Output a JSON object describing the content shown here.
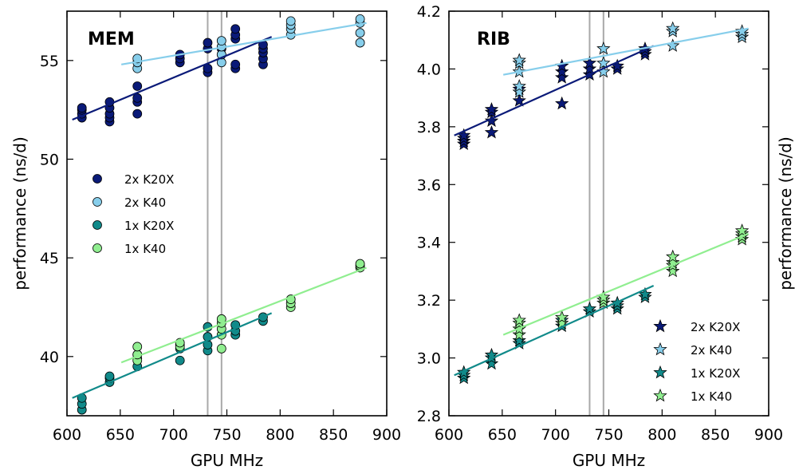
{
  "x_axis_label": "GPU MHz",
  "y_axis_label": "performance (ns/d)",
  "vertical_reference_lines_mhz": [
    732,
    745
  ],
  "series_colors": {
    "2x K20X": "#0a1a78",
    "2x K40": "#87ceeb",
    "1x K20X": "#118a8a",
    "1x K40": "#90ee90"
  },
  "chart_data": [
    {
      "type": "scatter",
      "title": "MEM",
      "marker": "circle",
      "xlabel": "GPU MHz",
      "ylabel": "performance (ns/d)",
      "xlim": [
        600,
        900
      ],
      "ylim": [
        37,
        57.5
      ],
      "xticks": [
        600,
        650,
        700,
        750,
        800,
        850,
        900
      ],
      "yticks": [
        40,
        45,
        50,
        55
      ],
      "grid": false,
      "legend": "center-left",
      "series": [
        {
          "name": "2x K20X",
          "points": [
            [
              614,
              52.1
            ],
            [
              614,
              52.3
            ],
            [
              614,
              52.5
            ],
            [
              614,
              52.6
            ],
            [
              640,
              51.9
            ],
            [
              640,
              52.1
            ],
            [
              640,
              52.3
            ],
            [
              640,
              52.6
            ],
            [
              640,
              52.9
            ],
            [
              666,
              52.3
            ],
            [
              666,
              52.9
            ],
            [
              666,
              53.1
            ],
            [
              666,
              53.7
            ],
            [
              706,
              54.9
            ],
            [
              706,
              55.1
            ],
            [
              706,
              55.3
            ],
            [
              732,
              54.4
            ],
            [
              732,
              54.6
            ],
            [
              732,
              55.6
            ],
            [
              732,
              55.9
            ],
            [
              745,
              55.3
            ],
            [
              745,
              55.6
            ],
            [
              758,
              54.6
            ],
            [
              758,
              54.8
            ],
            [
              758,
              56.1
            ],
            [
              758,
              56.3
            ],
            [
              758,
              56.6
            ],
            [
              784,
              54.8
            ],
            [
              784,
              55.1
            ],
            [
              784,
              55.4
            ],
            [
              784,
              55.6
            ],
            [
              784,
              55.8
            ]
          ],
          "fit": [
            [
              605,
              52.0
            ],
            [
              792,
              56.2
            ]
          ]
        },
        {
          "name": "2x K40",
          "points": [
            [
              666,
              54.6
            ],
            [
              666,
              54.9
            ],
            [
              666,
              55.1
            ],
            [
              745,
              54.9
            ],
            [
              745,
              55.3
            ],
            [
              745,
              55.7
            ],
            [
              745,
              56.0
            ],
            [
              810,
              56.3
            ],
            [
              810,
              56.6
            ],
            [
              810,
              56.8
            ],
            [
              810,
              57.0
            ],
            [
              875,
              55.9
            ],
            [
              875,
              56.4
            ],
            [
              875,
              56.9
            ],
            [
              875,
              57.1
            ]
          ],
          "fit": [
            [
              651,
              54.8
            ],
            [
              881,
              56.9
            ]
          ]
        },
        {
          "name": "1x K20X",
          "points": [
            [
              614,
              37.3
            ],
            [
              614,
              37.6
            ],
            [
              614,
              37.9
            ],
            [
              640,
              38.7
            ],
            [
              640,
              38.9
            ],
            [
              640,
              39.0
            ],
            [
              666,
              39.5
            ],
            [
              666,
              39.9
            ],
            [
              666,
              40.1
            ],
            [
              706,
              39.8
            ],
            [
              706,
              40.4
            ],
            [
              706,
              40.6
            ],
            [
              732,
              40.3
            ],
            [
              732,
              40.6
            ],
            [
              732,
              41.0
            ],
            [
              732,
              41.5
            ],
            [
              758,
              41.1
            ],
            [
              758,
              41.3
            ],
            [
              758,
              41.6
            ],
            [
              784,
              41.8
            ],
            [
              784,
              42.0
            ]
          ],
          "fit": [
            [
              605,
              37.9
            ],
            [
              792,
              42.2
            ]
          ]
        },
        {
          "name": "1x K40",
          "points": [
            [
              666,
              39.8
            ],
            [
              666,
              40.1
            ],
            [
              666,
              40.5
            ],
            [
              706,
              40.5
            ],
            [
              706,
              40.7
            ],
            [
              745,
              40.4
            ],
            [
              745,
              41.1
            ],
            [
              745,
              41.4
            ],
            [
              745,
              41.7
            ],
            [
              745,
              41.9
            ],
            [
              810,
              42.5
            ],
            [
              810,
              42.7
            ],
            [
              810,
              42.9
            ],
            [
              875,
              44.5
            ],
            [
              875,
              44.6
            ],
            [
              875,
              44.7
            ]
          ],
          "fit": [
            [
              651,
              39.7
            ],
            [
              881,
              44.5
            ]
          ]
        }
      ]
    },
    {
      "type": "scatter",
      "title": "RIB",
      "marker": "star",
      "xlabel": "GPU MHz",
      "ylabel": "performance (ns/d)",
      "xlim": [
        600,
        900
      ],
      "ylim": [
        2.8,
        4.2
      ],
      "xticks": [
        600,
        650,
        700,
        750,
        800,
        850,
        900
      ],
      "yticks": [
        2.8,
        3.0,
        3.2,
        3.4,
        3.6,
        3.8,
        4.0,
        4.2
      ],
      "grid": false,
      "legend": "lower-right",
      "series": [
        {
          "name": "2x K20X",
          "points": [
            [
              614,
              3.74
            ],
            [
              614,
              3.75
            ],
            [
              614,
              3.76
            ],
            [
              614,
              3.77
            ],
            [
              640,
              3.78
            ],
            [
              640,
              3.82
            ],
            [
              640,
              3.85
            ],
            [
              640,
              3.86
            ],
            [
              666,
              3.89
            ],
            [
              666,
              3.93
            ],
            [
              706,
              3.88
            ],
            [
              706,
              3.97
            ],
            [
              706,
              3.99
            ],
            [
              706,
              4.01
            ],
            [
              732,
              3.98
            ],
            [
              732,
              4.0
            ],
            [
              732,
              4.02
            ],
            [
              758,
              4.0
            ],
            [
              758,
              4.01
            ],
            [
              784,
              4.05
            ],
            [
              784,
              4.06
            ],
            [
              784,
              4.07
            ]
          ],
          "fit": [
            [
              605,
              3.77
            ],
            [
              792,
              4.08
            ]
          ]
        },
        {
          "name": "2x K40",
          "points": [
            [
              666,
              3.92
            ],
            [
              666,
              3.94
            ],
            [
              666,
              3.99
            ],
            [
              666,
              4.02
            ],
            [
              666,
              4.03
            ],
            [
              745,
              3.99
            ],
            [
              745,
              4.02
            ],
            [
              745,
              4.07
            ],
            [
              810,
              4.08
            ],
            [
              810,
              4.13
            ],
            [
              810,
              4.14
            ],
            [
              875,
              4.11
            ],
            [
              875,
              4.12
            ],
            [
              875,
              4.13
            ]
          ],
          "fit": [
            [
              651,
              3.98
            ],
            [
              881,
              4.14
            ]
          ]
        },
        {
          "name": "1x K20X",
          "points": [
            [
              614,
              2.93
            ],
            [
              614,
              2.94
            ],
            [
              614,
              2.95
            ],
            [
              640,
              2.98
            ],
            [
              640,
              3.0
            ],
            [
              640,
              3.01
            ],
            [
              666,
              3.05
            ],
            [
              666,
              3.06
            ],
            [
              706,
              3.11
            ],
            [
              706,
              3.13
            ],
            [
              732,
              3.16
            ],
            [
              732,
              3.17
            ],
            [
              758,
              3.17
            ],
            [
              758,
              3.18
            ],
            [
              758,
              3.19
            ],
            [
              784,
              3.21
            ],
            [
              784,
              3.22
            ]
          ],
          "fit": [
            [
              605,
              2.94
            ],
            [
              792,
              3.25
            ]
          ]
        },
        {
          "name": "1x K40",
          "points": [
            [
              666,
              3.08
            ],
            [
              666,
              3.1
            ],
            [
              666,
              3.12
            ],
            [
              666,
              3.13
            ],
            [
              706,
              3.12
            ],
            [
              706,
              3.14
            ],
            [
              745,
              3.19
            ],
            [
              745,
              3.2
            ],
            [
              745,
              3.21
            ],
            [
              810,
              3.3
            ],
            [
              810,
              3.32
            ],
            [
              810,
              3.33
            ],
            [
              810,
              3.35
            ],
            [
              875,
              3.41
            ],
            [
              875,
              3.42
            ],
            [
              875,
              3.43
            ],
            [
              875,
              3.44
            ]
          ],
          "fit": [
            [
              651,
              3.08
            ],
            [
              881,
              3.43
            ]
          ]
        }
      ]
    }
  ]
}
